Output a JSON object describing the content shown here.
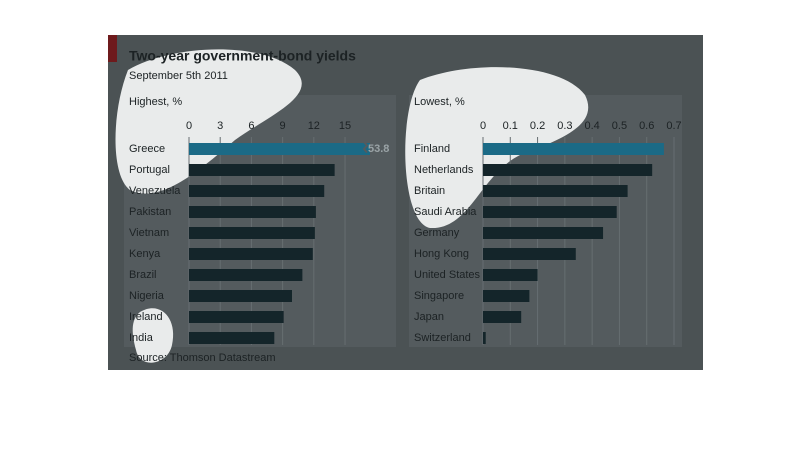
{
  "header": {
    "title": "Two-year government-bond yields",
    "subtitle": "September 5th 2011"
  },
  "footer": {
    "source": "Source: Thomson Datastream"
  },
  "chart_data": [
    {
      "type": "bar",
      "orientation": "horizontal",
      "title": "Highest, %",
      "categories": [
        "Greece",
        "Portugal",
        "Venezuela",
        "Pakistan",
        "Vietnam",
        "Kenya",
        "Brazil",
        "Nigeria",
        "Ireland",
        "India"
      ],
      "values": [
        53.8,
        14.0,
        13.0,
        12.2,
        12.1,
        11.9,
        10.9,
        9.9,
        9.1,
        8.2
      ],
      "value_labels": [
        "53.8",
        null,
        null,
        null,
        null,
        null,
        null,
        null,
        null,
        null
      ],
      "colors": [
        "#1b6a86",
        "#14252a",
        "#14252a",
        "#14252a",
        "#14252a",
        "#14252a",
        "#14252a",
        "#14252a",
        "#14252a",
        "#14252a"
      ],
      "xlim": [
        0,
        17.4
      ],
      "xticks": [
        0,
        3,
        6,
        9,
        12,
        15
      ],
      "grid": true
    },
    {
      "type": "bar",
      "orientation": "horizontal",
      "title": "Lowest, %",
      "categories": [
        "Finland",
        "Netherlands",
        "Britain",
        "Saudi Arabia",
        "Germany",
        "Hong Kong",
        "United States",
        "Singapore",
        "Japan",
        "Switzerland"
      ],
      "values": [
        0.663,
        0.62,
        0.53,
        0.49,
        0.44,
        0.34,
        0.2,
        0.17,
        0.14,
        0.01
      ],
      "colors": [
        "#1b6a86",
        "#14252a",
        "#14252a",
        "#14252a",
        "#14252a",
        "#14252a",
        "#14252a",
        "#14252a",
        "#14252a",
        "#14252a"
      ],
      "xlim": [
        0,
        0.7
      ],
      "xticks": [
        0,
        0.1,
        0.2,
        0.3,
        0.4,
        0.5,
        0.6,
        0.7
      ],
      "grid": true
    }
  ]
}
